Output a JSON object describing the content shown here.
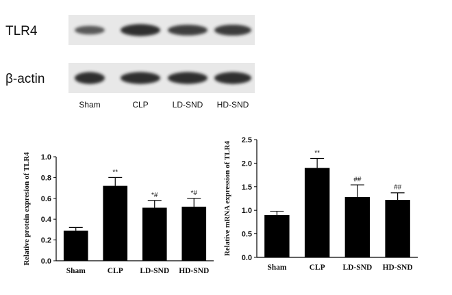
{
  "blot": {
    "rows": [
      {
        "label": "TLR4",
        "intensity": [
          0.55,
          0.95,
          0.8,
          0.82
        ]
      },
      {
        "label": "β-actin",
        "intensity": [
          0.95,
          0.95,
          0.95,
          0.95
        ]
      }
    ],
    "lanes": [
      "Sham",
      "CLP",
      "LD-SND",
      "HD-SND"
    ]
  },
  "colors": {
    "bar": "#000000",
    "band": "#2a2a2a",
    "membrane": "#e8e8e8"
  },
  "chart_data": [
    {
      "type": "bar",
      "title": "",
      "xlabel": "",
      "ylabel": "Relative protein expresion of TLR4",
      "categories": [
        "Sham",
        "CLP",
        "LD-SND",
        "HD-SND"
      ],
      "values": [
        0.29,
        0.72,
        0.51,
        0.52
      ],
      "errors": [
        0.03,
        0.08,
        0.07,
        0.08
      ],
      "annotations": [
        "",
        "**",
        "*#",
        "*#"
      ],
      "ylim": [
        0,
        1.0
      ],
      "yticks": [
        "0.0",
        "0.2",
        "0.4",
        "0.6",
        "0.8",
        "1.0"
      ]
    },
    {
      "type": "bar",
      "title": "",
      "xlabel": "",
      "ylabel": "Relative mRNA expression of TLR4",
      "categories": [
        "Sham",
        "CLP",
        "LD-SND",
        "HD-SND"
      ],
      "values": [
        0.9,
        1.9,
        1.28,
        1.22
      ],
      "errors": [
        0.08,
        0.2,
        0.26,
        0.15
      ],
      "annotations": [
        "",
        "**",
        "##",
        "##"
      ],
      "ylim": [
        0,
        2.5
      ],
      "yticks": [
        "0.0",
        "0.5",
        "1.0",
        "1.5",
        "2.0",
        "2.5"
      ]
    }
  ]
}
